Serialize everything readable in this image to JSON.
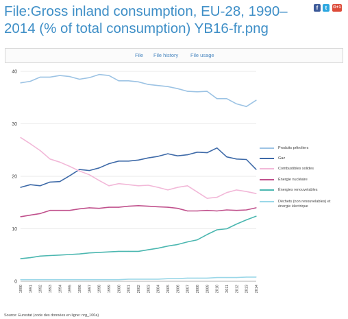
{
  "page": {
    "title": "File:Gross inland consumption, EU-28, 1990–2014 (% of total consumption) YB16-fr.png"
  },
  "share": {
    "facebook": "f",
    "twitter": "t",
    "googleplus": "G+1"
  },
  "tabs": [
    {
      "label": "File"
    },
    {
      "label": "File history"
    },
    {
      "label": "File usage"
    }
  ],
  "chart_data": {
    "type": "line",
    "title": "",
    "xlabel": "",
    "ylabel": "",
    "ylim": [
      0,
      40
    ],
    "yticks": [
      "0",
      "10",
      "20",
      "30",
      "40"
    ],
    "grid": true,
    "legend_position": "right",
    "x": [
      "1990",
      "1991",
      "1992",
      "1993",
      "1994",
      "1995",
      "1996",
      "1997",
      "1998",
      "1999",
      "2000",
      "2001",
      "2002",
      "2003",
      "2004",
      "2005",
      "2006",
      "2007",
      "2008",
      "2009",
      "2010",
      "2011",
      "2012",
      "2013",
      "2014"
    ],
    "series": [
      {
        "name": "Produits pétroliers",
        "color": "#9cc3e4",
        "values": [
          37.8,
          38.1,
          38.9,
          38.9,
          39.2,
          39.0,
          38.5,
          38.8,
          39.4,
          39.2,
          38.2,
          38.2,
          38.0,
          37.5,
          37.3,
          37.1,
          36.7,
          36.2,
          36.1,
          36.2,
          34.8,
          34.8,
          33.8,
          33.3,
          34.5
        ]
      },
      {
        "name": "Gaz",
        "color": "#3e6aa8",
        "values": [
          17.9,
          18.4,
          18.2,
          18.9,
          19.0,
          20.1,
          21.3,
          21.1,
          21.6,
          22.4,
          22.9,
          22.9,
          23.1,
          23.5,
          23.8,
          24.3,
          23.9,
          24.1,
          24.6,
          24.5,
          25.4,
          23.7,
          23.3,
          23.2,
          21.3
        ]
      },
      {
        "name": "Combustibles solides",
        "color": "#f2b8d8",
        "values": [
          27.4,
          26.2,
          24.9,
          23.3,
          22.7,
          21.9,
          21.0,
          20.3,
          19.2,
          18.2,
          18.6,
          18.4,
          18.2,
          18.3,
          17.9,
          17.4,
          17.9,
          18.2,
          17.0,
          15.8,
          16.0,
          16.9,
          17.4,
          17.1,
          16.7
        ]
      },
      {
        "name": "Énergie nucléaire",
        "color": "#c0508c",
        "values": [
          12.3,
          12.6,
          12.9,
          13.5,
          13.5,
          13.5,
          13.8,
          14.0,
          13.9,
          14.1,
          14.1,
          14.3,
          14.4,
          14.3,
          14.2,
          14.1,
          13.9,
          13.4,
          13.4,
          13.5,
          13.4,
          13.6,
          13.5,
          13.6,
          14.0
        ]
      },
      {
        "name": "Énergies renouvelables",
        "color": "#4bb7b0",
        "values": [
          4.3,
          4.5,
          4.8,
          4.9,
          5.0,
          5.1,
          5.2,
          5.4,
          5.5,
          5.6,
          5.7,
          5.7,
          5.7,
          6.0,
          6.3,
          6.7,
          7.0,
          7.5,
          7.9,
          8.9,
          9.8,
          10.0,
          10.9,
          11.7,
          12.4
        ]
      },
      {
        "name": "Déchets (non renouvelables) et énergie électrique",
        "color": "#9ad7e8",
        "values": [
          0.3,
          0.3,
          0.3,
          0.3,
          0.3,
          0.3,
          0.3,
          0.3,
          0.3,
          0.3,
          0.3,
          0.4,
          0.4,
          0.4,
          0.4,
          0.5,
          0.5,
          0.6,
          0.6,
          0.6,
          0.7,
          0.7,
          0.7,
          0.8,
          0.8
        ]
      }
    ]
  },
  "source": "Source: Eurostat (code des données en ligne: nrg_100a)"
}
